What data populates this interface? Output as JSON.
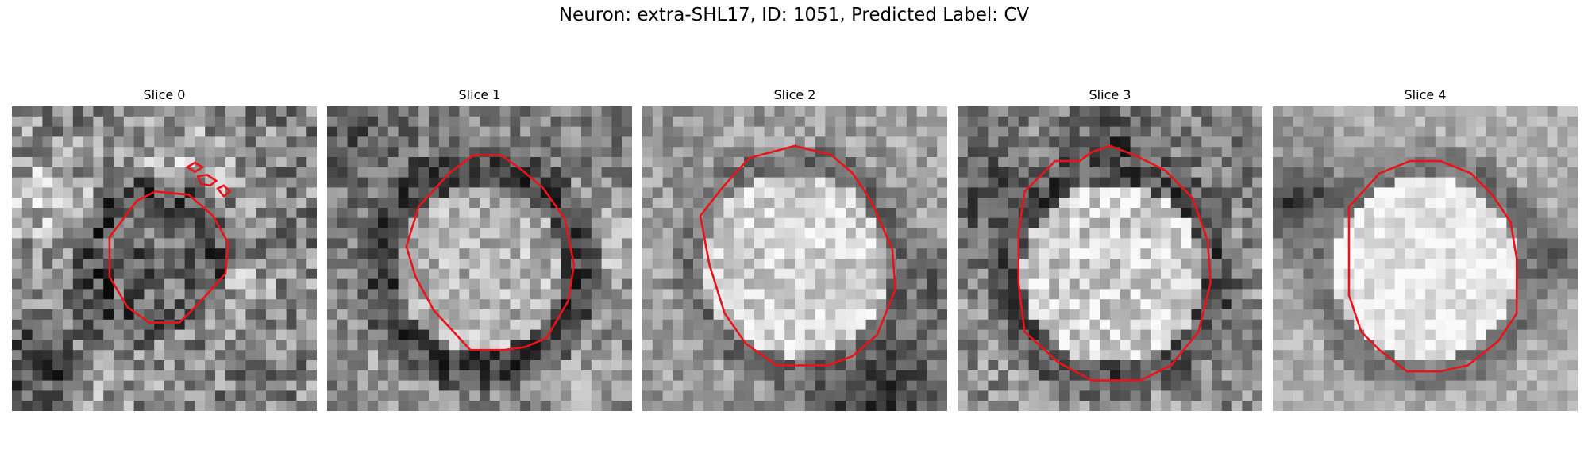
{
  "figure": {
    "title": "Neuron: extra-SHL17, ID: 1051, Predicted Label: CV",
    "panels": [
      {
        "title": "Slice 0"
      },
      {
        "title": "Slice 1"
      },
      {
        "title": "Slice 2"
      },
      {
        "title": "Slice 3"
      },
      {
        "title": "Slice 4"
      }
    ],
    "contour_color": "#e8141a",
    "colormap": "gray"
  }
}
